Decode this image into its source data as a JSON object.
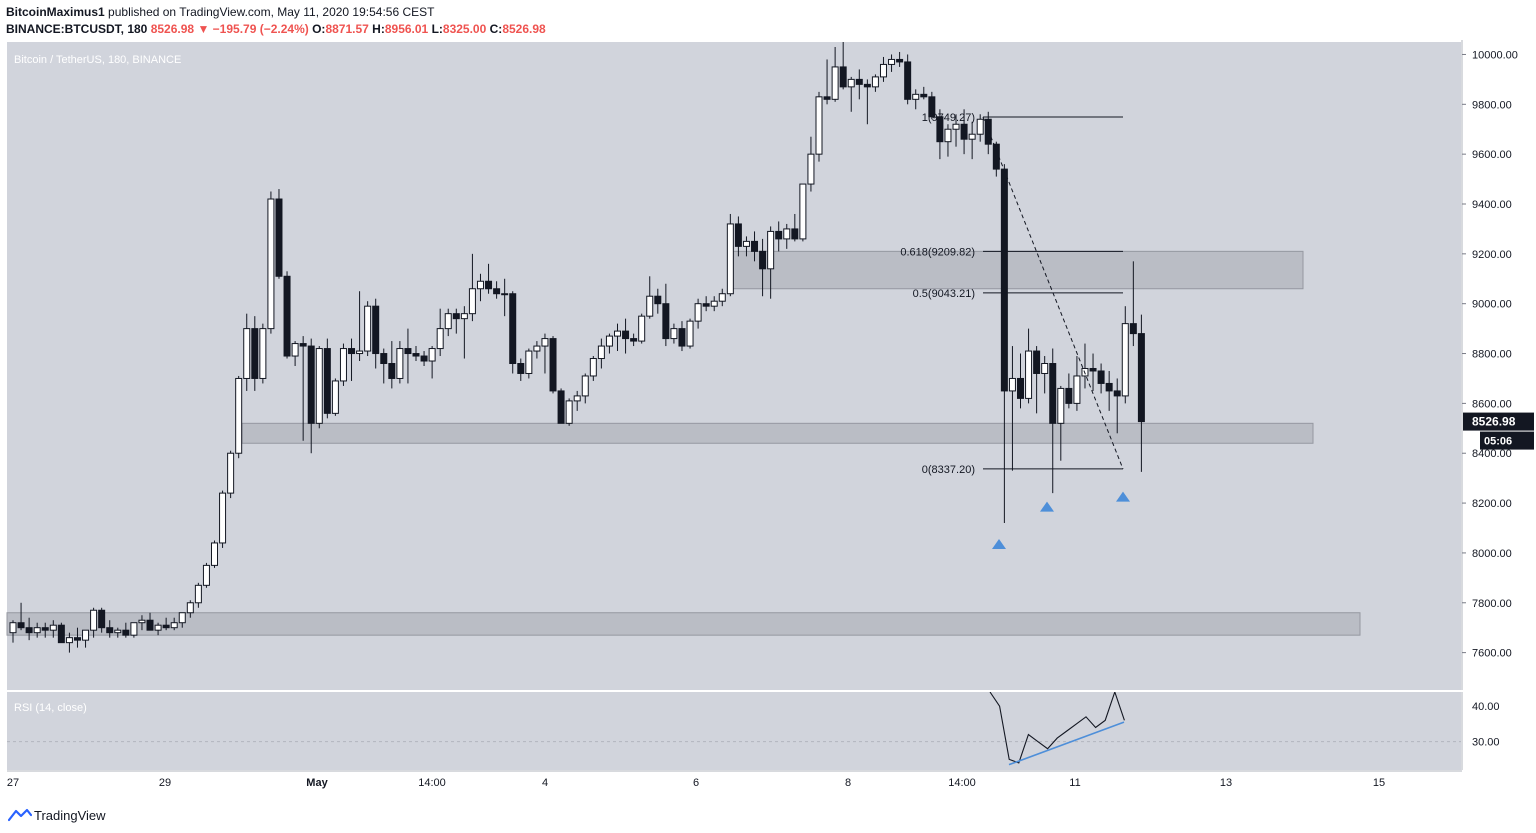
{
  "header": {
    "author": "BitcoinMaximus1",
    "published": "published on TradingView.com, May 11, 2020 19:54:56 CEST",
    "symbol": "BINANCE:BTCUSDT, 180",
    "price": "8526.98",
    "change": "−195.79 (−2.24%)",
    "o_label": "O:",
    "o_value": "8871.57",
    "h_label": "H:",
    "h_value": "8956.01",
    "l_label": "L:",
    "l_value": "8325.00",
    "c_label": "C:",
    "c_value": "8526.98"
  },
  "footer": {
    "brand": "TradingView"
  },
  "colors": {
    "panel_bg": "#d1d4dc",
    "candle_body_up": "#ffffff",
    "candle_body_down": "#131722",
    "zone": "#b2b5be",
    "accent_blue": "#4e8fd9",
    "price_tag": "#131722"
  },
  "chart_data": {
    "type": "candlestick",
    "title": "Bitcoin / TetherUS, 180, BINANCE",
    "ylim": [
      7450,
      10050
    ],
    "y_ticks": [
      "10000.00",
      "9800.00",
      "9600.00",
      "9400.00",
      "9200.00",
      "9000.00",
      "8800.00",
      "8600.00",
      "8400.00",
      "8200.00",
      "8000.00",
      "7800.00",
      "7600.00"
    ],
    "x_ticks": [
      "27",
      "29",
      "May",
      "14:00",
      "4",
      "6",
      "8",
      "14:00",
      "11",
      "13",
      "15"
    ],
    "last_price": "8526.98",
    "countdown": "05:06",
    "candles": [
      [
        7680,
        7730,
        7640,
        7720
      ],
      [
        7720,
        7800,
        7690,
        7700
      ],
      [
        7700,
        7740,
        7650,
        7680
      ],
      [
        7680,
        7720,
        7660,
        7700
      ],
      [
        7700,
        7720,
        7660,
        7690
      ],
      [
        7690,
        7730,
        7660,
        7710
      ],
      [
        7710,
        7720,
        7660,
        7640
      ],
      [
        7640,
        7680,
        7600,
        7660
      ],
      [
        7660,
        7700,
        7620,
        7650
      ],
      [
        7650,
        7690,
        7620,
        7690
      ],
      [
        7690,
        7780,
        7660,
        7770
      ],
      [
        7770,
        7780,
        7680,
        7700
      ],
      [
        7700,
        7730,
        7660,
        7680
      ],
      [
        7680,
        7700,
        7660,
        7690
      ],
      [
        7690,
        7720,
        7660,
        7670
      ],
      [
        7670,
        7720,
        7660,
        7720
      ],
      [
        7720,
        7750,
        7690,
        7730
      ],
      [
        7730,
        7760,
        7690,
        7690
      ],
      [
        7690,
        7720,
        7670,
        7710
      ],
      [
        7710,
        7740,
        7690,
        7700
      ],
      [
        7700,
        7740,
        7690,
        7720
      ],
      [
        7720,
        7760,
        7700,
        7760
      ],
      [
        7760,
        7810,
        7740,
        7800
      ],
      [
        7800,
        7880,
        7780,
        7870
      ],
      [
        7870,
        7960,
        7860,
        7950
      ],
      [
        7950,
        8050,
        7940,
        8040
      ],
      [
        8040,
        8250,
        8020,
        8240
      ],
      [
        8240,
        8410,
        8220,
        8400
      ],
      [
        8400,
        8710,
        8380,
        8700
      ],
      [
        8700,
        8960,
        8650,
        8900
      ],
      [
        8900,
        8950,
        8650,
        8700
      ],
      [
        8700,
        8920,
        8680,
        8900
      ],
      [
        8900,
        9450,
        8880,
        9420
      ],
      [
        9420,
        9460,
        9100,
        9110
      ],
      [
        9110,
        9130,
        8780,
        8790
      ],
      [
        8790,
        8850,
        8750,
        8840
      ],
      [
        8840,
        8870,
        8450,
        8830
      ],
      [
        8830,
        8860,
        8400,
        8520
      ],
      [
        8520,
        8830,
        8500,
        8820
      ],
      [
        8820,
        8860,
        8540,
        8560
      ],
      [
        8560,
        8700,
        8550,
        8690
      ],
      [
        8690,
        8840,
        8670,
        8820
      ],
      [
        8820,
        8860,
        8690,
        8800
      ],
      [
        8800,
        9050,
        8770,
        8810
      ],
      [
        8810,
        9010,
        8790,
        8990
      ],
      [
        8990,
        9020,
        8740,
        8800
      ],
      [
        8800,
        8820,
        8680,
        8760
      ],
      [
        8760,
        8850,
        8660,
        8700
      ],
      [
        8700,
        8850,
        8680,
        8820
      ],
      [
        8820,
        8900,
        8680,
        8800
      ],
      [
        8800,
        8830,
        8770,
        8790
      ],
      [
        8790,
        8810,
        8750,
        8770
      ],
      [
        8770,
        8830,
        8700,
        8820
      ],
      [
        8820,
        8980,
        8790,
        8900
      ],
      [
        8900,
        8980,
        8870,
        8960
      ],
      [
        8960,
        8980,
        8880,
        8940
      ],
      [
        8940,
        8990,
        8780,
        8960
      ],
      [
        8960,
        9200,
        8930,
        9060
      ],
      [
        9060,
        9120,
        9010,
        9090
      ],
      [
        9090,
        9160,
        9040,
        9060
      ],
      [
        9060,
        9090,
        9020,
        9040
      ],
      [
        9040,
        9100,
        8950,
        9040
      ],
      [
        9040,
        9050,
        8720,
        8760
      ],
      [
        8760,
        8780,
        8690,
        8720
      ],
      [
        8720,
        8820,
        8700,
        8810
      ],
      [
        8810,
        8850,
        8780,
        8830
      ],
      [
        8830,
        8880,
        8720,
        8860
      ],
      [
        8860,
        8870,
        8640,
        8650
      ],
      [
        8650,
        8660,
        8520,
        8520
      ],
      [
        8520,
        8620,
        8510,
        8610
      ],
      [
        8610,
        8650,
        8570,
        8630
      ],
      [
        8630,
        8720,
        8600,
        8710
      ],
      [
        8710,
        8790,
        8690,
        8780
      ],
      [
        8780,
        8860,
        8740,
        8830
      ],
      [
        8830,
        8880,
        8800,
        8870
      ],
      [
        8870,
        8920,
        8810,
        8890
      ],
      [
        8890,
        8940,
        8800,
        8860
      ],
      [
        8860,
        8880,
        8830,
        8850
      ],
      [
        8850,
        8960,
        8840,
        8950
      ],
      [
        8950,
        9110,
        8940,
        9030
      ],
      [
        9030,
        9060,
        8960,
        9000
      ],
      [
        9000,
        9080,
        8830,
        8860
      ],
      [
        8860,
        8920,
        8840,
        8900
      ],
      [
        8900,
        8930,
        8810,
        8830
      ],
      [
        8830,
        8940,
        8820,
        8930
      ],
      [
        8930,
        9020,
        8900,
        9000
      ],
      [
        9000,
        9030,
        8970,
        8990
      ],
      [
        8990,
        9030,
        8970,
        9010
      ],
      [
        9010,
        9060,
        8990,
        9040
      ],
      [
        9040,
        9360,
        9030,
        9320
      ],
      [
        9320,
        9350,
        9190,
        9230
      ],
      [
        9230,
        9270,
        9190,
        9250
      ],
      [
        9250,
        9290,
        9170,
        9210
      ],
      [
        9210,
        9260,
        9030,
        9140
      ],
      [
        9140,
        9310,
        9020,
        9290
      ],
      [
        9290,
        9330,
        9210,
        9260
      ],
      [
        9260,
        9320,
        9220,
        9300
      ],
      [
        9300,
        9360,
        9250,
        9260
      ],
      [
        9260,
        9480,
        9250,
        9480
      ],
      [
        9480,
        9670,
        9450,
        9600
      ],
      [
        9600,
        9850,
        9570,
        9830
      ],
      [
        9830,
        9980,
        9800,
        9820
      ],
      [
        9820,
        10030,
        9810,
        9950
      ],
      [
        9950,
        10050,
        9860,
        9870
      ],
      [
        9870,
        9910,
        9770,
        9900
      ],
      [
        9900,
        9940,
        9820,
        9880
      ],
      [
        9880,
        9900,
        9720,
        9870
      ],
      [
        9870,
        9920,
        9850,
        9910
      ],
      [
        9910,
        9990,
        9890,
        9960
      ],
      [
        9960,
        10000,
        9930,
        9980
      ],
      [
        9980,
        10010,
        9950,
        9970
      ],
      [
        9970,
        10000,
        9800,
        9820
      ],
      [
        9820,
        9860,
        9780,
        9840
      ],
      [
        9840,
        9870,
        9820,
        9830
      ],
      [
        9830,
        9850,
        9740,
        9750
      ],
      [
        9750,
        9780,
        9580,
        9650
      ],
      [
        9650,
        9720,
        9590,
        9700
      ],
      [
        9700,
        9760,
        9630,
        9720
      ],
      [
        9720,
        9780,
        9600,
        9660
      ],
      [
        9660,
        9730,
        9580,
        9680
      ],
      [
        9680,
        9760,
        9650,
        9740
      ],
      [
        9740,
        9770,
        9600,
        9640
      ],
      [
        9640,
        9650,
        9510,
        9540
      ],
      [
        9540,
        9560,
        8120,
        8650
      ],
      [
        8650,
        8830,
        8330,
        8700
      ],
      [
        8700,
        8800,
        8580,
        8620
      ],
      [
        8620,
        8900,
        8600,
        8810
      ],
      [
        8810,
        8830,
        8560,
        8720
      ],
      [
        8720,
        8790,
        8640,
        8760
      ],
      [
        8760,
        8820,
        8240,
        8520
      ],
      [
        8520,
        8670,
        8370,
        8660
      ],
      [
        8660,
        8720,
        8580,
        8600
      ],
      [
        8600,
        8790,
        8570,
        8710
      ],
      [
        8710,
        8840,
        8660,
        8740
      ],
      [
        8740,
        8800,
        8650,
        8730
      ],
      [
        8730,
        8760,
        8640,
        8680
      ],
      [
        8680,
        8730,
        8570,
        8650
      ],
      [
        8650,
        8700,
        8480,
        8630
      ],
      [
        8630,
        8990,
        8600,
        8920
      ],
      [
        8920,
        9170,
        8830,
        8880
      ],
      [
        8880,
        8956,
        8325,
        8527
      ]
    ],
    "zones": [
      {
        "low": 9060,
        "high": 9210
      },
      {
        "low": 8440,
        "high": 8520
      },
      {
        "low": 7670,
        "high": 7760
      }
    ],
    "fibonacci": [
      {
        "label": "1(9749.27)",
        "value": 9749.27
      },
      {
        "label": "0.618(9209.82)",
        "value": 9209.82
      },
      {
        "label": "0.5(9043.21)",
        "value": 9043.21
      },
      {
        "label": "0(8337.20)",
        "value": 8337.2
      }
    ],
    "rsi": {
      "label": "RSI (14, close)",
      "ylim": [
        22,
        44
      ],
      "y_ticks": [
        "40.00",
        "30.00"
      ],
      "values": [
        62,
        40,
        25,
        24,
        32,
        30,
        28,
        31,
        33,
        35,
        37,
        34,
        36,
        47,
        36
      ]
    }
  }
}
